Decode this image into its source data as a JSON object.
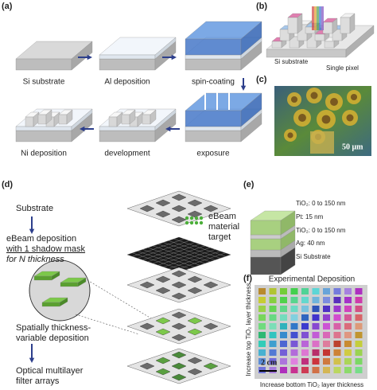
{
  "panels": {
    "a": {
      "label": "(a)",
      "steps": [
        "Si substrate",
        "Al deposition",
        "spin-coating",
        "exposure",
        "development",
        "Ni deposition"
      ]
    },
    "b": {
      "label": "(b)",
      "texts": [
        "Si substrate",
        "Single pixel"
      ]
    },
    "c": {
      "label": "(c)",
      "scale_bar": "50 μm"
    },
    "d": {
      "label": "(d)",
      "substrate": "Substrate",
      "deposition": [
        "eBeam deposition",
        "with 1 shadow mask",
        "for N thickness"
      ],
      "target": [
        "eBeam",
        "material",
        "target"
      ],
      "variable": [
        "Spatially thickness-",
        "variable deposition"
      ],
      "result": [
        "Optical multilayer",
        "filter arrays"
      ]
    },
    "e": {
      "label": "(e)",
      "layers": [
        "TiO₂:  0 to 150 nm",
        "Pt:    15 nm",
        "TiO₂:  0 to 150 nm",
        "Ag:   40 nm",
        "Si Substrate"
      ]
    },
    "f": {
      "label": "(f)",
      "title": "Experimental Deposition",
      "y_label": "Increase top TiO₂ layer thickness",
      "x_label": "Increase bottom TiO₂ layer thickness",
      "scale_bar": "2 cm"
    }
  }
}
